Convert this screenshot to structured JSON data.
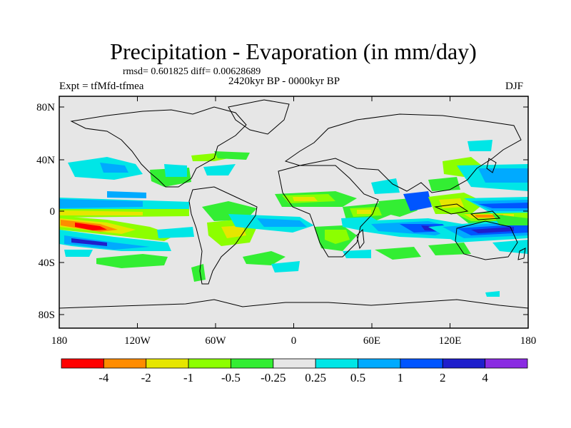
{
  "title": "Precipitation - Evaporation (in mm/day)",
  "stats": "rmsd= 0.601825 diff= 0.00628689",
  "period": "2420kyr BP - 0000kyr BP",
  "experiment": "Expt = tfMfd-tfmea",
  "season": "DJF",
  "map": {
    "x_ticks": [
      "180",
      "120W",
      "60W",
      "0",
      "60E",
      "120E",
      "180"
    ],
    "y_ticks": [
      "80N",
      "40N",
      "0",
      "40S",
      "80S"
    ],
    "background_color": "#e6e6e6"
  },
  "colorbar": {
    "colors": [
      "#ff0000",
      "#ff8c00",
      "#e6e600",
      "#8cff00",
      "#33ee33",
      "#e6e6e6",
      "#00e6e6",
      "#00aaff",
      "#0055ff",
      "#1f1fcc",
      "#8a2be2"
    ],
    "labels": [
      "-4",
      "-2",
      "-1",
      "-0.5",
      "-0.25",
      "0.25",
      "0.5",
      "1",
      "2",
      "4"
    ]
  }
}
